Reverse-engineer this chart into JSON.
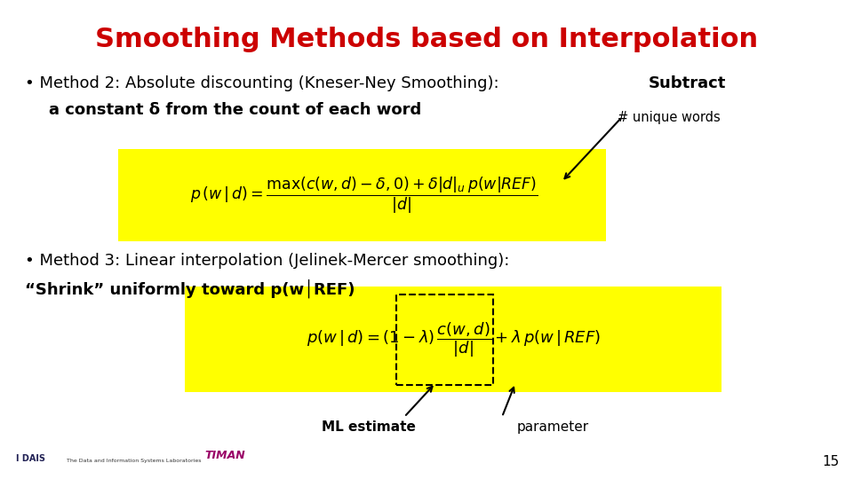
{
  "title": "Smoothing Methods based on Interpolation",
  "title_color": "#CC0000",
  "title_fontsize": 22,
  "bg_color": "#FFFFFF",
  "text_color": "#000000",
  "yellow": "#FFFF00",
  "annotation1": "# unique words",
  "annotation2_left": "ML estimate",
  "annotation2_right": "parameter",
  "footer_num": "15"
}
